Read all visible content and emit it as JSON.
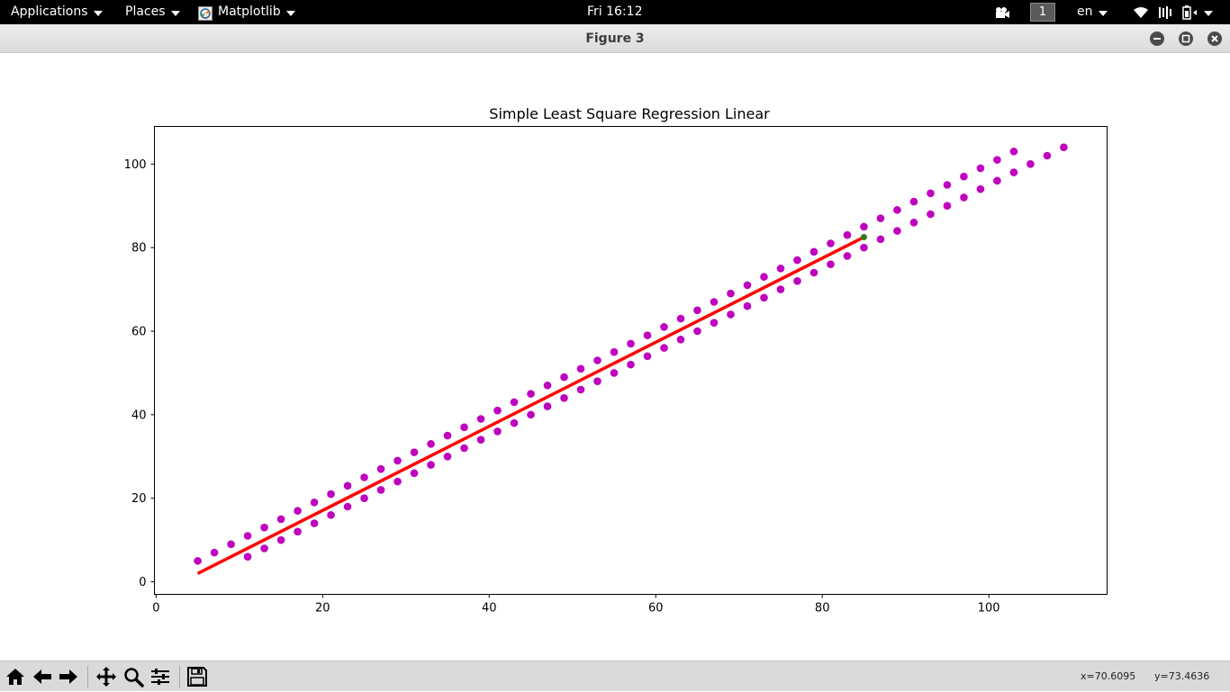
{
  "top_panel": {
    "applications_label": "Applications",
    "places_label": "Places",
    "app_label": "Matplotlib",
    "clock": "Fri 16:12",
    "workspace": "1",
    "language": "en"
  },
  "window": {
    "title": "Figure 3"
  },
  "toolbar": {
    "icons": [
      "home-icon",
      "back-arrow-icon",
      "forward-arrow-icon",
      "pan-icon",
      "zoom-icon",
      "configure-subplots-icon",
      "save-icon"
    ],
    "x_readout": "x=70.6095",
    "y_readout": "y=73.4636"
  },
  "colors": {
    "scatter": "#bf00bf",
    "line": "#ff0000",
    "highlight_point": "#2e7d1b"
  },
  "chart_data": {
    "type": "scatter",
    "title": "Simple Least Square Regression Linear",
    "xlabel": "",
    "ylabel": "",
    "xlim": [
      -0.2,
      114.2
    ],
    "ylim": [
      -3.0,
      109.0
    ],
    "xticks": [
      0,
      20,
      40,
      60,
      80,
      100
    ],
    "yticks": [
      0,
      20,
      40,
      60,
      80,
      100
    ],
    "grid": false,
    "series": [
      {
        "kind": "scatter",
        "points": [
          [
            5,
            5
          ],
          [
            7,
            7
          ],
          [
            9,
            9
          ],
          [
            11,
            11
          ],
          [
            13,
            13
          ],
          [
            15,
            15
          ],
          [
            17,
            17
          ],
          [
            19,
            19
          ],
          [
            21,
            21
          ],
          [
            23,
            23
          ],
          [
            25,
            25
          ],
          [
            27,
            27
          ],
          [
            29,
            29
          ],
          [
            31,
            31
          ],
          [
            33,
            33
          ],
          [
            35,
            35
          ],
          [
            37,
            37
          ],
          [
            39,
            39
          ],
          [
            41,
            41
          ],
          [
            43,
            43
          ],
          [
            45,
            45
          ],
          [
            47,
            47
          ],
          [
            49,
            49
          ],
          [
            51,
            51
          ],
          [
            53,
            53
          ],
          [
            55,
            55
          ],
          [
            57,
            57
          ],
          [
            59,
            59
          ],
          [
            61,
            61
          ],
          [
            63,
            63
          ],
          [
            65,
            65
          ],
          [
            67,
            67
          ],
          [
            69,
            69
          ],
          [
            71,
            71
          ],
          [
            73,
            73
          ],
          [
            75,
            75
          ],
          [
            77,
            77
          ],
          [
            79,
            79
          ],
          [
            81,
            81
          ],
          [
            83,
            83
          ],
          [
            85,
            85
          ],
          [
            87,
            87
          ],
          [
            89,
            89
          ],
          [
            91,
            91
          ],
          [
            93,
            93
          ],
          [
            95,
            95
          ],
          [
            97,
            97
          ],
          [
            99,
            99
          ],
          [
            101,
            101
          ],
          [
            103,
            103
          ],
          [
            11,
            6
          ],
          [
            13,
            8
          ],
          [
            15,
            10
          ],
          [
            17,
            12
          ],
          [
            19,
            14
          ],
          [
            21,
            16
          ],
          [
            23,
            18
          ],
          [
            25,
            20
          ],
          [
            27,
            22
          ],
          [
            29,
            24
          ],
          [
            31,
            26
          ],
          [
            33,
            28
          ],
          [
            35,
            30
          ],
          [
            37,
            32
          ],
          [
            39,
            34
          ],
          [
            41,
            36
          ],
          [
            43,
            38
          ],
          [
            45,
            40
          ],
          [
            47,
            42
          ],
          [
            49,
            44
          ],
          [
            51,
            46
          ],
          [
            53,
            48
          ],
          [
            55,
            50
          ],
          [
            57,
            52
          ],
          [
            59,
            54
          ],
          [
            61,
            56
          ],
          [
            63,
            58
          ],
          [
            65,
            60
          ],
          [
            67,
            62
          ],
          [
            69,
            64
          ],
          [
            71,
            66
          ],
          [
            73,
            68
          ],
          [
            75,
            70
          ],
          [
            77,
            72
          ],
          [
            79,
            74
          ],
          [
            81,
            76
          ],
          [
            83,
            78
          ],
          [
            85,
            80
          ],
          [
            87,
            82
          ],
          [
            89,
            84
          ],
          [
            91,
            86
          ],
          [
            93,
            88
          ],
          [
            95,
            90
          ],
          [
            97,
            92
          ],
          [
            99,
            94
          ],
          [
            101,
            96
          ],
          [
            103,
            98
          ],
          [
            105,
            100
          ],
          [
            107,
            102
          ],
          [
            109,
            104
          ]
        ]
      },
      {
        "kind": "line",
        "points": [
          [
            5,
            2
          ],
          [
            85,
            82.5
          ]
        ]
      },
      {
        "kind": "highlight",
        "points": [
          [
            85,
            82.5
          ]
        ]
      }
    ]
  }
}
